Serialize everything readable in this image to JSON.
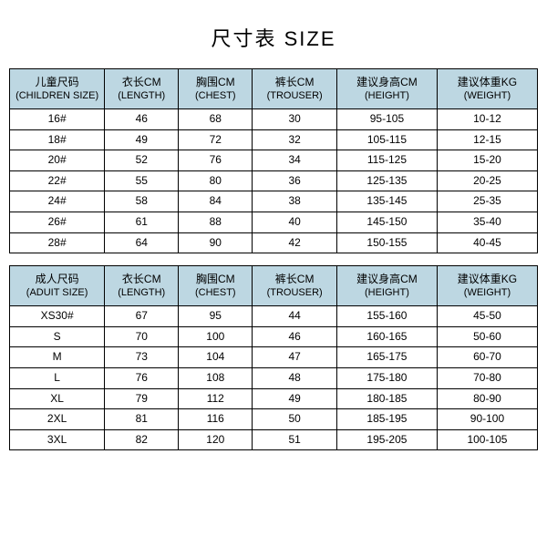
{
  "title": "尺寸表 SIZE",
  "colors": {
    "header_bg": "#bdd7e2",
    "border": "#000000",
    "bg": "#ffffff",
    "text": "#000000"
  },
  "children_table": {
    "headers": [
      {
        "cn": "儿童尺码",
        "en": "(CHILDREN SIZE)"
      },
      {
        "cn": "衣长CM",
        "en": "(LENGTH)"
      },
      {
        "cn": "胸围CM",
        "en": "(CHEST)"
      },
      {
        "cn": "裤长CM",
        "en": "(TROUSER)"
      },
      {
        "cn": "建议身高CM",
        "en": "(HEIGHT)"
      },
      {
        "cn": "建议体重KG",
        "en": "(WEIGHT)"
      }
    ],
    "rows": [
      [
        "16#",
        "46",
        "68",
        "30",
        "95-105",
        "10-12"
      ],
      [
        "18#",
        "49",
        "72",
        "32",
        "105-115",
        "12-15"
      ],
      [
        "20#",
        "52",
        "76",
        "34",
        "115-125",
        "15-20"
      ],
      [
        "22#",
        "55",
        "80",
        "36",
        "125-135",
        "20-25"
      ],
      [
        "24#",
        "58",
        "84",
        "38",
        "135-145",
        "25-35"
      ],
      [
        "26#",
        "61",
        "88",
        "40",
        "145-150",
        "35-40"
      ],
      [
        "28#",
        "64",
        "90",
        "42",
        "150-155",
        "40-45"
      ]
    ]
  },
  "adult_table": {
    "headers": [
      {
        "cn": "成人尺码",
        "en": "(ADUIT SIZE)"
      },
      {
        "cn": "衣长CM",
        "en": "(LENGTH)"
      },
      {
        "cn": "胸围CM",
        "en": "(CHEST)"
      },
      {
        "cn": "裤长CM",
        "en": "(TROUSER)"
      },
      {
        "cn": "建议身高CM",
        "en": "(HEIGHT)"
      },
      {
        "cn": "建议体重KG",
        "en": "(WEIGHT)"
      }
    ],
    "rows": [
      [
        "XS30#",
        "67",
        "95",
        "44",
        "155-160",
        "45-50"
      ],
      [
        "S",
        "70",
        "100",
        "46",
        "160-165",
        "50-60"
      ],
      [
        "M",
        "73",
        "104",
        "47",
        "165-175",
        "60-70"
      ],
      [
        "L",
        "76",
        "108",
        "48",
        "175-180",
        "70-80"
      ],
      [
        "XL",
        "79",
        "112",
        "49",
        "180-185",
        "80-90"
      ],
      [
        "2XL",
        "81",
        "116",
        "50",
        "185-195",
        "90-100"
      ],
      [
        "3XL",
        "82",
        "120",
        "51",
        "195-205",
        "100-105"
      ]
    ]
  }
}
